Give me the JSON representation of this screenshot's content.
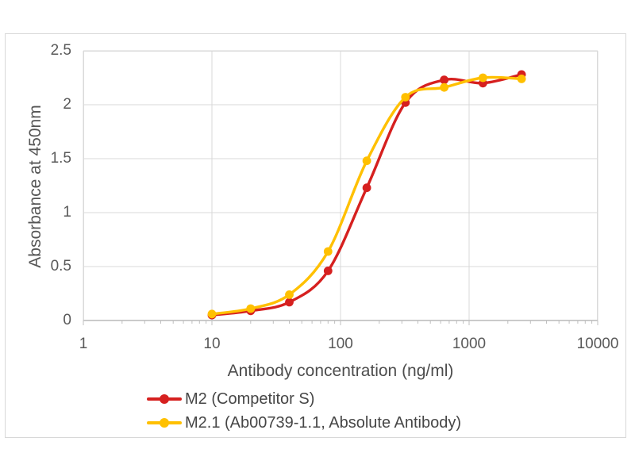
{
  "chart_data": {
    "type": "line",
    "title": "",
    "xlabel": "Antibody concentration (ng/ml)",
    "ylabel": "Absorbance at 450nm",
    "x_scale": "log10",
    "xlim": [
      1,
      10000
    ],
    "ylim": [
      0,
      2.5
    ],
    "grid": true,
    "legend_position": "bottom-left",
    "x_ticks": [
      1,
      10,
      100,
      1000,
      10000
    ],
    "x_tick_labels": [
      "1",
      "10",
      "100",
      "1000",
      "10000"
    ],
    "y_ticks": [
      2.5,
      2,
      1.5,
      1,
      0.5,
      0
    ],
    "y_tick_labels": [
      "2.5",
      "2",
      "1.5",
      "1",
      "0.5",
      "0"
    ],
    "x": [
      10,
      20,
      40,
      80,
      160,
      320,
      640,
      1280,
      2560
    ],
    "series": [
      {
        "name": "M2 (Competitor S)",
        "color": "#D6201F",
        "marker": "circle",
        "values": [
          0.05,
          0.09,
          0.17,
          0.46,
          1.23,
          2.02,
          2.23,
          2.2,
          2.28
        ]
      },
      {
        "name": "M2.1 (Ab00739-1.1, Absolute Antibody)",
        "color": "#FFC000",
        "marker": "circle",
        "values": [
          0.06,
          0.11,
          0.24,
          0.64,
          1.48,
          2.07,
          2.16,
          2.25,
          2.24
        ]
      }
    ],
    "colors": {
      "gridline": "#D9D9D9",
      "axis_line": "#BFBFBF",
      "tick_mark": "#BFBFBF",
      "tick_text": "#595959",
      "title_text": "#4d4d4d",
      "panel_border": "#D8D8D8",
      "background": "#ffffff"
    }
  }
}
